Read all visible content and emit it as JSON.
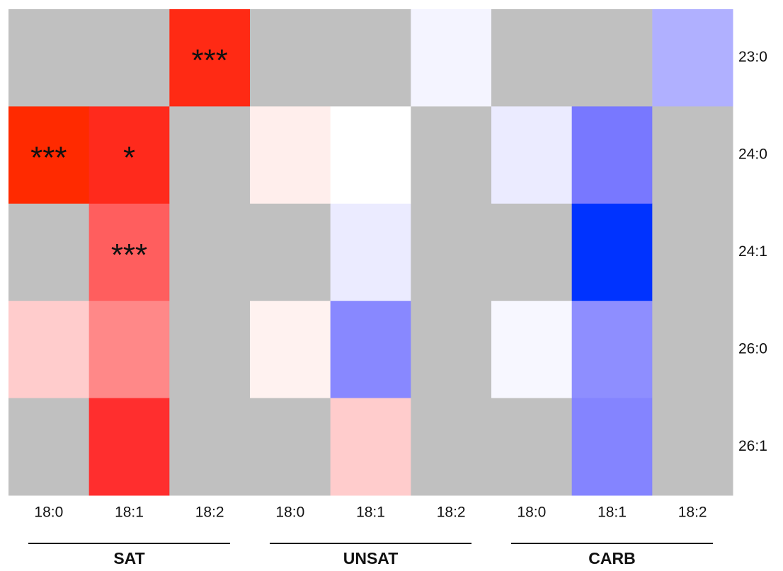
{
  "chart_data": {
    "type": "heatmap",
    "rows": [
      "23:0",
      "24:0",
      "24:1",
      "26:0",
      "26:1"
    ],
    "columns": [
      "18:0",
      "18:1",
      "18:2",
      "18:0",
      "18:1",
      "18:2",
      "18:0",
      "18:1",
      "18:2"
    ],
    "groups": [
      "SAT",
      "UNSAT",
      "CARB"
    ],
    "cell_colors": [
      [
        "#c0c0c0",
        "#c0c0c0",
        "#ff2a14",
        "#c0c0c0",
        "#c0c0c0",
        "#f4f4ff",
        "#c0c0c0",
        "#c0c0c0",
        "#b0b0ff"
      ],
      [
        "#ff2a00",
        "#ff2a1c",
        "#c0c0c0",
        "#ffeeec",
        "#ffffff",
        "#c0c0c0",
        "#ebebff",
        "#7878ff",
        "#c0c0c0"
      ],
      [
        "#c0c0c0",
        "#ff5e5e",
        "#c0c0c0",
        "#c0c0c0",
        "#ebebff",
        "#c0c0c0",
        "#c0c0c0",
        "#0033ff",
        "#c0c0c0"
      ],
      [
        "#ffcccc",
        "#ff8888",
        "#c0c0c0",
        "#fff2f0",
        "#8888ff",
        "#c0c0c0",
        "#f7f7ff",
        "#8e8eff",
        "#c0c0c0"
      ],
      [
        "#c0c0c0",
        "#ff2e2e",
        "#c0c0c0",
        "#c0c0c0",
        "#ffcccc",
        "#c0c0c0",
        "#c0c0c0",
        "#8484ff",
        "#c0c0c0"
      ]
    ],
    "annotations": [
      [
        null,
        null,
        "***",
        null,
        null,
        null,
        null,
        null,
        null
      ],
      [
        "***",
        "*",
        null,
        null,
        null,
        null,
        null,
        null,
        null
      ],
      [
        null,
        "***",
        null,
        null,
        null,
        null,
        null,
        null,
        null
      ],
      [
        null,
        null,
        null,
        null,
        null,
        null,
        null,
        null,
        null
      ],
      [
        null,
        null,
        null,
        null,
        null,
        null,
        null,
        null,
        null
      ]
    ]
  }
}
